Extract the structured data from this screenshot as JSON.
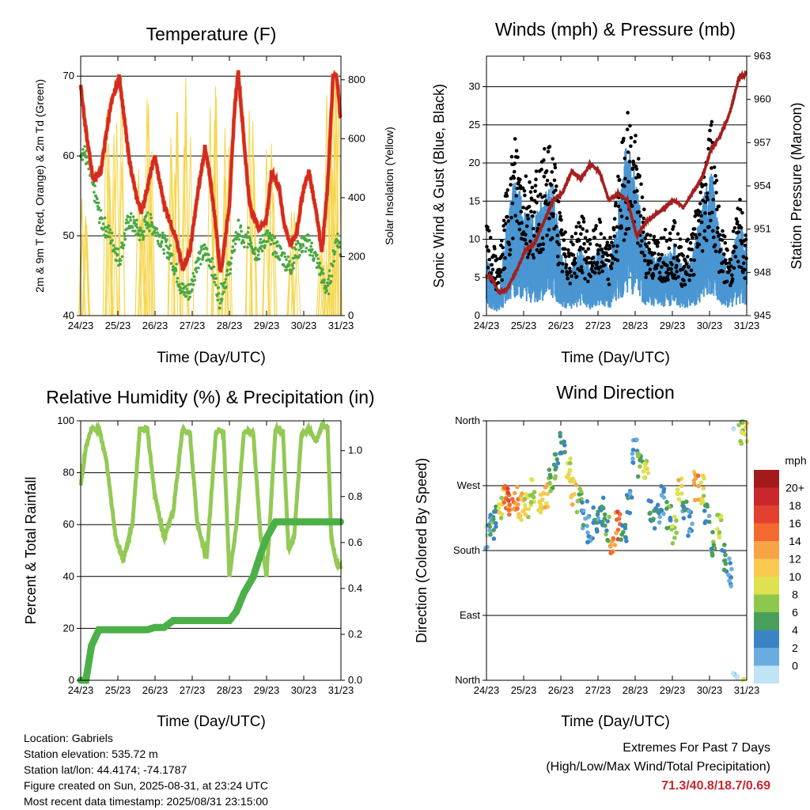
{
  "panels": {
    "temperature": {
      "title": "Temperature (F)",
      "xlabel": "Time (Day/UTC)",
      "ylabel_left": "2m & 9m T (Red, Orange) & 2m Td (Green)",
      "ylabel_right": "Solar Insolation (Yellow)",
      "xticks": [
        "24/23",
        "25/23",
        "26/23",
        "27/23",
        "28/23",
        "29/23",
        "30/23",
        "31/23"
      ],
      "yticks_left": [
        "40",
        "50",
        "60",
        "70"
      ],
      "yticks_right": [
        "0",
        "200",
        "400",
        "600",
        "800"
      ]
    },
    "winds": {
      "title": "Winds (mph) & Pressure (mb)",
      "xlabel": "Time (Day/UTC)",
      "ylabel_left": "Sonic Wind & Gust (Blue, Black)",
      "ylabel_right": "Station Pressure (Maroon)",
      "xticks": [
        "24/23",
        "25/23",
        "26/23",
        "27/23",
        "28/23",
        "29/23",
        "30/23",
        "31/23"
      ],
      "yticks_left": [
        "0",
        "5",
        "10",
        "15",
        "20",
        "25",
        "30"
      ],
      "yticks_right": [
        "945",
        "948",
        "951",
        "954",
        "957",
        "960",
        "963"
      ]
    },
    "humidity": {
      "title": "Relative Humidity (%) & Precipitation (in)",
      "xlabel": "Time (Day/UTC)",
      "ylabel_left": "Percent & Total Rainfall",
      "xticks": [
        "24/23",
        "25/23",
        "26/23",
        "27/23",
        "28/23",
        "29/23",
        "30/23",
        "31/23"
      ],
      "yticks_left": [
        "0",
        "20",
        "40",
        "60",
        "80",
        "100"
      ],
      "yticks_right": [
        "0.0",
        "0.2",
        "0.4",
        "0.6",
        "0.8",
        "1.0"
      ]
    },
    "direction": {
      "title": "Wind Direction",
      "xlabel": "Time (Day/UTC)",
      "ylabel_left": "Direction (Colored By Speed)",
      "xticks": [
        "24/23",
        "25/23",
        "26/23",
        "27/23",
        "28/23",
        "29/23",
        "30/23",
        "31/23"
      ],
      "yticks_left": [
        "North",
        "West",
        "South",
        "East",
        "North"
      ],
      "legend_title": "mph",
      "legend_labels": [
        "20+",
        "18",
        "16",
        "14",
        "12",
        "10",
        "8",
        "6",
        "4",
        "2",
        "0"
      ],
      "legend_colors": [
        "#a31a1d",
        "#c8282d",
        "#e2412f",
        "#f26a30",
        "#f7a346",
        "#f9c950",
        "#dfe14f",
        "#8fc64c",
        "#4a9e5b",
        "#3b84c4",
        "#6aacdf",
        "#bfe4f5"
      ]
    }
  },
  "chart_data": [
    {
      "type": "line",
      "title": "Temperature (F)",
      "xlabel": "Time (Day/UTC)",
      "ylabel": "2m & 9m T (Red, Orange) & 2m Td (Green)",
      "ylabel_right": "Solar Insolation (Yellow)",
      "xlim": [
        24.96,
        31.96
      ],
      "ylim": [
        40,
        72.5
      ],
      "ylim_right": [
        0,
        880
      ],
      "x": [
        24.96,
        25.1,
        25.3,
        25.5,
        25.75,
        26.0,
        26.25,
        26.45,
        26.6,
        26.75,
        26.95,
        27.2,
        27.35,
        27.5,
        27.7,
        27.9,
        28.1,
        28.3,
        28.45,
        28.6,
        28.7,
        28.75,
        28.96,
        29.1,
        29.2,
        29.35,
        29.5,
        29.65,
        29.75,
        29.95,
        30.1,
        30.3,
        30.45,
        30.6,
        30.75,
        30.96,
        31.1,
        31.3,
        31.45,
        31.6,
        31.75,
        31.85,
        31.96
      ],
      "series": [
        {
          "name": "2m T",
          "color": "#d42a26",
          "values": [
            69,
            63,
            57,
            58,
            66,
            70,
            60,
            55,
            53,
            56,
            60,
            54,
            52,
            50,
            46,
            48,
            55,
            61,
            57,
            51,
            46,
            46,
            54,
            66,
            70.5,
            62,
            54,
            52,
            51,
            52,
            58,
            56,
            51,
            49,
            50,
            56,
            58,
            53,
            48,
            56,
            70,
            70,
            64
          ]
        },
        {
          "name": "2m Td",
          "color": "#4aa843",
          "values": [
            61,
            60,
            56,
            52,
            50,
            47,
            52,
            51,
            50,
            52,
            51,
            49,
            48,
            46,
            43,
            43,
            47,
            48,
            47,
            44,
            42,
            43,
            46,
            49,
            51,
            49,
            50,
            48,
            48,
            50,
            49,
            48,
            47,
            46,
            48,
            49,
            49,
            47,
            45,
            43,
            47,
            50,
            48
          ]
        }
      ],
      "solar_insolation": {
        "name": "Solar Insolation",
        "color": "#f6d54a",
        "peaks": [
          {
            "x": 25.1,
            "value": 420
          },
          {
            "x": 25.7,
            "value": 760
          },
          {
            "x": 25.95,
            "value": 820
          },
          {
            "x": 26.6,
            "value": 500
          },
          {
            "x": 26.85,
            "value": 760
          },
          {
            "x": 27.5,
            "value": 820
          },
          {
            "x": 27.8,
            "value": 870
          },
          {
            "x": 28.5,
            "value": 790
          },
          {
            "x": 28.9,
            "value": 650
          },
          {
            "x": 29.6,
            "value": 700
          },
          {
            "x": 30.05,
            "value": 620
          },
          {
            "x": 30.7,
            "value": 380
          },
          {
            "x": 31.5,
            "value": 300
          },
          {
            "x": 31.7,
            "value": 840
          },
          {
            "x": 31.85,
            "value": 860
          }
        ]
      }
    },
    {
      "type": "scatter",
      "title": "Winds (mph) & Pressure (mb)",
      "xlabel": "Time (Day/UTC)",
      "ylabel": "Sonic Wind & Gust (Blue, Black)",
      "ylabel_right": "Station Pressure (Maroon)",
      "xlim": [
        24.96,
        31.96
      ],
      "ylim": [
        0,
        34
      ],
      "ylim_right": [
        945,
        963
      ],
      "x": [
        24.96,
        25.1,
        25.3,
        25.5,
        25.75,
        26.0,
        26.25,
        26.5,
        26.75,
        27.0,
        27.25,
        27.5,
        27.75,
        28.0,
        28.25,
        28.5,
        28.75,
        29.0,
        29.25,
        29.5,
        29.75,
        30.0,
        30.25,
        30.5,
        30.75,
        31.0,
        31.25,
        31.5,
        31.75,
        31.96
      ],
      "series": [
        {
          "name": "Gust",
          "color": "#000000",
          "values": [
            11,
            9,
            6,
            15,
            22,
            17,
            16,
            19,
            20,
            10,
            9,
            12,
            9,
            11,
            8,
            16,
            25,
            20,
            11,
            9,
            10,
            11,
            8,
            10,
            17,
            24,
            11,
            7,
            14,
            9
          ]
        },
        {
          "name": "Sonic Wind",
          "color": "#4a96d2",
          "values": [
            5,
            4,
            2,
            8,
            12,
            9,
            8,
            10,
            11,
            5,
            4,
            6,
            4,
            6,
            4,
            9,
            15,
            11,
            6,
            5,
            5,
            6,
            4,
            5,
            9,
            13,
            6,
            4,
            8,
            6
          ]
        },
        {
          "name": "Station Pressure",
          "color": "#a3201f",
          "values": [
            947.8,
            947.6,
            946.6,
            946.8,
            948.0,
            949.5,
            950.0,
            951.5,
            953.0,
            953.5,
            955.0,
            954.5,
            955.5,
            955.0,
            953.0,
            953.5,
            953.0,
            950.5,
            951.5,
            952.0,
            952.5,
            953.0,
            952.5,
            953.5,
            954.5,
            956.5,
            957.5,
            959.0,
            961.5,
            961.8
          ]
        }
      ]
    },
    {
      "type": "line",
      "title": "Relative Humidity (%) & Precipitation (in)",
      "xlabel": "Time (Day/UTC)",
      "ylabel": "Percent & Total Rainfall",
      "xlim": [
        24.96,
        31.96
      ],
      "ylim": [
        0,
        100
      ],
      "ylim_right": [
        0,
        1.13
      ],
      "x": [
        24.96,
        25.1,
        25.25,
        25.45,
        25.65,
        25.9,
        26.1,
        26.35,
        26.55,
        26.75,
        26.95,
        27.2,
        27.45,
        27.7,
        27.9,
        28.1,
        28.35,
        28.6,
        28.8,
        28.96,
        29.15,
        29.35,
        29.6,
        29.8,
        29.96,
        30.2,
        30.4,
        30.55,
        30.7,
        30.9,
        31.1,
        31.3,
        31.45,
        31.6,
        31.7,
        31.85,
        31.96
      ],
      "series": [
        {
          "name": "Relative Humidity",
          "color": "#93c955",
          "values": [
            75,
            90,
            97,
            97,
            85,
            55,
            46,
            60,
            97,
            97,
            72,
            55,
            65,
            97,
            95,
            60,
            47,
            96,
            96,
            40,
            60,
            96,
            96,
            55,
            40,
            97,
            96,
            50,
            55,
            95,
            97,
            92,
            98,
            98,
            55,
            45,
            43
          ]
        },
        {
          "name": "Total Rainfall",
          "color": "#4cb048",
          "axis": "right",
          "values": [
            0.0,
            0.0,
            0.15,
            0.22,
            0.22,
            0.22,
            0.22,
            0.22,
            0.22,
            0.22,
            0.23,
            0.23,
            0.26,
            0.26,
            0.26,
            0.26,
            0.26,
            0.26,
            0.26,
            0.26,
            0.3,
            0.38,
            0.45,
            0.55,
            0.62,
            0.69,
            0.69,
            0.69,
            0.69,
            0.69,
            0.69,
            0.69,
            0.69,
            0.69,
            0.69,
            0.69,
            0.69
          ]
        }
      ]
    },
    {
      "type": "scatter",
      "title": "Wind Direction",
      "xlabel": "Time (Day/UTC)",
      "ylabel": "Direction (Colored By Speed)",
      "xlim": [
        24.96,
        31.96
      ],
      "ylim": [
        0,
        360
      ],
      "x": [
        25.0,
        25.1,
        25.2,
        25.35,
        25.5,
        25.6,
        25.75,
        25.9,
        26.05,
        26.2,
        26.4,
        26.55,
        26.7,
        26.85,
        27.0,
        27.15,
        27.3,
        27.45,
        27.6,
        27.75,
        27.9,
        28.05,
        28.2,
        28.35,
        28.5,
        28.65,
        28.8,
        28.95,
        29.1,
        29.25,
        29.4,
        29.55,
        29.7,
        29.85,
        30.0,
        30.15,
        30.3,
        30.45,
        30.6,
        30.75,
        30.9,
        31.05,
        31.2,
        31.35,
        31.5,
        31.65,
        31.8,
        31.9
      ],
      "speed": [
        2,
        4,
        6,
        10,
        14,
        16,
        15,
        12,
        10,
        8,
        11,
        12,
        8,
        6,
        4,
        10,
        12,
        8,
        4,
        3,
        4,
        5,
        6,
        14,
        16,
        5,
        4,
        3,
        8,
        10,
        6,
        4,
        3,
        6,
        9,
        12,
        4,
        3,
        14,
        10,
        4,
        6,
        8,
        5,
        3,
        2,
        8,
        10
      ],
      "series": [
        {
          "name": "Direction",
          "values": [
            200,
            210,
            225,
            245,
            250,
            255,
            250,
            240,
            245,
            260,
            250,
            255,
            280,
            300,
            330,
            295,
            260,
            250,
            230,
            210,
            220,
            235,
            210,
            195,
            215,
            205,
            250,
            320,
            300,
            285,
            240,
            230,
            250,
            230,
            210,
            260,
            240,
            220,
            270,
            265,
            230,
            190,
            210,
            170,
            150,
            350,
            340,
            345
          ]
        }
      ]
    }
  ],
  "footer": {
    "location": "Location: Gabriels",
    "elevation": "Station elevation: 535.72 m",
    "latlon": "Station lat/lon: 44.4174; -74.1787",
    "created": "Figure created on Sun, 2025-08-31, at 23:24 UTC",
    "recent": "Most recent data timestamp: 2025/08/31 23:15:00",
    "extremes_title": "Extremes For Past 7 Days",
    "extremes_sub": "(High/Low/Max Wind/Total Precipitation)",
    "extremes_values": "71.3/40.8/18.7/0.69"
  }
}
